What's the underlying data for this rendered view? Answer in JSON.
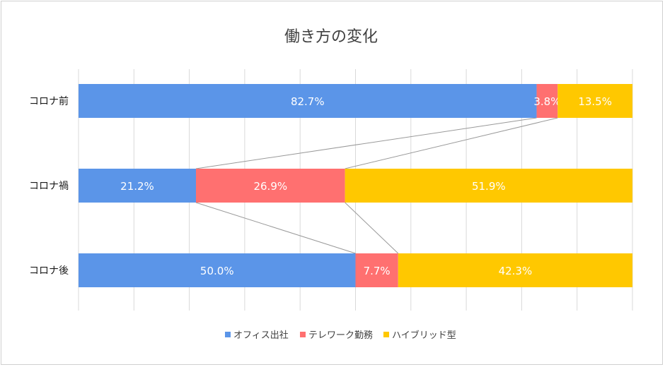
{
  "chart_data": {
    "type": "bar",
    "orientation": "horizontal",
    "stacked": true,
    "percent": true,
    "title": "働き方の変化",
    "categories": [
      "コロナ前",
      "コロナ禍",
      "コロナ後"
    ],
    "series": [
      {
        "name": "オフィス出社",
        "color": "#5b95e8",
        "values": [
          82.7,
          21.2,
          50.0
        ],
        "labels": [
          "82.7%",
          "21.2%",
          "50.0%"
        ]
      },
      {
        "name": "テレワーク勤務",
        "color": "#ff7070",
        "values": [
          3.8,
          26.9,
          7.7
        ],
        "labels": [
          "3.8%",
          "26.9%",
          "7.7%"
        ]
      },
      {
        "name": "ハイブリッド型",
        "color": "#ffc800",
        "values": [
          13.5,
          51.9,
          42.3
        ],
        "labels": [
          "13.5%",
          "51.9%",
          "42.3%"
        ]
      }
    ],
    "xlim": [
      0,
      100
    ],
    "grid": true,
    "series_lines": true,
    "legend_position": "bottom"
  }
}
